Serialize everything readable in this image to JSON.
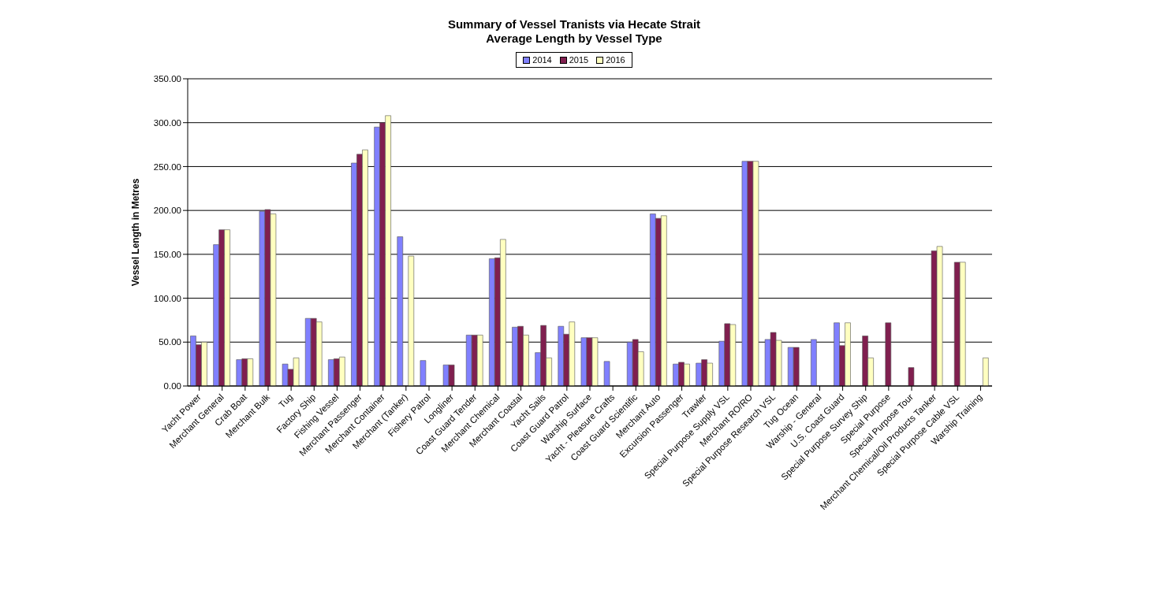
{
  "chart_data": {
    "type": "bar",
    "title": "Summary of Vessel Tranists via Hecate Strait",
    "subtitle": "Average Length by Vessel Type",
    "ylabel": "Vessel Length in Metres",
    "categories": [
      "Yacht Power",
      "Merchant General",
      "Crab Boat",
      "Merchant Bulk",
      "Tug",
      "Factory Ship",
      "Fishing Vessel",
      "Merchant Passenger",
      "Merchant Container",
      "Merchant (Tanker)",
      "Fishery Patrol",
      "Longliner",
      "Coast Guard Tender",
      "Merchant Chemical",
      "Merchant Coastal",
      "Yacht Sails",
      "Coast Guard Patrol",
      "Warship Surface",
      "Yacht - Pleasure Crafts",
      "Coast Guard Scientific",
      "Merchant Auto",
      "Excursion Passenger",
      "Trawler",
      "Special Purpose Supply VSL",
      "Merchant RO/RO",
      "Special Purpose Research VSL",
      "Tug Ocean",
      "Warship - General",
      "U.S. Coast Guard",
      "Special Purpose Survey Ship",
      "Special Purpose",
      "Special Purpose Tour",
      "Merchant Chemical/Oil Products Tanker",
      "Special Purpose Cable VSL",
      "Warship Training"
    ],
    "series": [
      {
        "name": "2014",
        "color": "#8080ff",
        "values": [
          57,
          161,
          30,
          199,
          25,
          77,
          30,
          254,
          295,
          170,
          29,
          24,
          58,
          145,
          67,
          38,
          68,
          55,
          28,
          50,
          196,
          25,
          26,
          51,
          256,
          53,
          44,
          53,
          72,
          null,
          null,
          null,
          null,
          null,
          null
        ]
      },
      {
        "name": "2015",
        "color": "#801f4f",
        "values": [
          47,
          178,
          31,
          201,
          19,
          77,
          31,
          264,
          300,
          null,
          null,
          24,
          58,
          146,
          68,
          69,
          59,
          55,
          null,
          53,
          191,
          27,
          30,
          71,
          256,
          61,
          44,
          null,
          46,
          57,
          72,
          21,
          154,
          141,
          null
        ]
      },
      {
        "name": "2016",
        "color": "#ffffc0",
        "values": [
          50,
          178,
          31,
          196,
          32,
          73,
          33,
          269,
          308,
          148,
          null,
          null,
          58,
          167,
          58,
          32,
          73,
          55,
          null,
          39,
          194,
          25,
          26,
          70,
          256,
          52,
          null,
          null,
          72,
          32,
          null,
          null,
          159,
          141,
          32
        ]
      }
    ],
    "ylim": [
      0,
      350
    ],
    "yticks": [
      {
        "value": 0,
        "label": "0.00"
      },
      {
        "value": 50,
        "label": "50.00"
      },
      {
        "value": 100,
        "label": "100.00"
      },
      {
        "value": 150,
        "label": "150.00"
      },
      {
        "value": 200,
        "label": "200.00"
      },
      {
        "value": 250,
        "label": "250.00"
      },
      {
        "value": 300,
        "label": "300.00"
      },
      {
        "value": 350,
        "label": "350.00"
      }
    ],
    "grid": "y",
    "legend": "top"
  }
}
